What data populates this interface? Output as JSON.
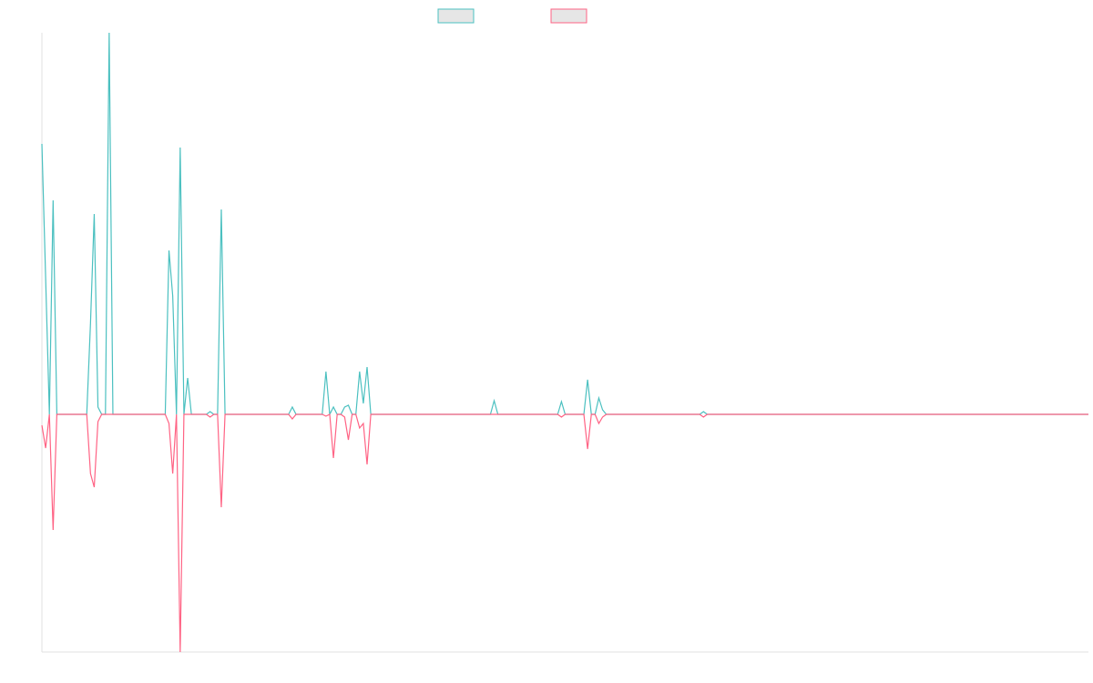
{
  "chart_data": {
    "type": "line",
    "x": [
      0,
      1,
      2,
      3,
      4,
      12,
      13,
      14,
      15,
      16,
      17,
      18,
      19,
      33,
      34,
      35,
      36,
      37,
      38,
      39,
      40,
      44,
      45,
      46,
      47,
      48,
      49,
      66,
      67,
      68,
      75,
      76,
      77,
      78,
      79,
      80,
      81,
      82,
      83,
      84,
      85,
      86,
      87,
      88,
      120,
      121,
      122,
      138,
      139,
      140,
      145,
      146,
      147,
      148,
      149,
      150,
      151,
      176,
      177,
      178,
      280
    ],
    "xlim": [
      0,
      280
    ],
    "ylim": [
      -261,
      419
    ],
    "series": [
      {
        "color": "#4bc0c0",
        "values": [
          297,
          150,
          0,
          235,
          0,
          0,
          100,
          220,
          8,
          0,
          0,
          419,
          0,
          0,
          180,
          130,
          0,
          293,
          0,
          40,
          0,
          0,
          3,
          0,
          0,
          225,
          0,
          0,
          8,
          0,
          0,
          47,
          0,
          8,
          0,
          0,
          8,
          10,
          0,
          0,
          47,
          12,
          52,
          0,
          0,
          15,
          0,
          0,
          14,
          0,
          0,
          38,
          0,
          0,
          18,
          5,
          0,
          0,
          3,
          0,
          0
        ]
      },
      {
        "color": "#ff6384",
        "values": [
          -12,
          -37,
          0,
          -127,
          0,
          0,
          -65,
          -80,
          -8,
          0,
          0,
          0,
          0,
          0,
          -10,
          -65,
          0,
          -261,
          0,
          0,
          0,
          0,
          -3,
          0,
          0,
          -102,
          0,
          0,
          -5,
          0,
          0,
          -2,
          0,
          -48,
          0,
          0,
          -3,
          -28,
          0,
          0,
          -15,
          -10,
          -55,
          0,
          0,
          0,
          0,
          0,
          -3,
          0,
          0,
          -38,
          0,
          0,
          -10,
          -3,
          0,
          0,
          -3,
          0,
          0
        ]
      }
    ]
  }
}
